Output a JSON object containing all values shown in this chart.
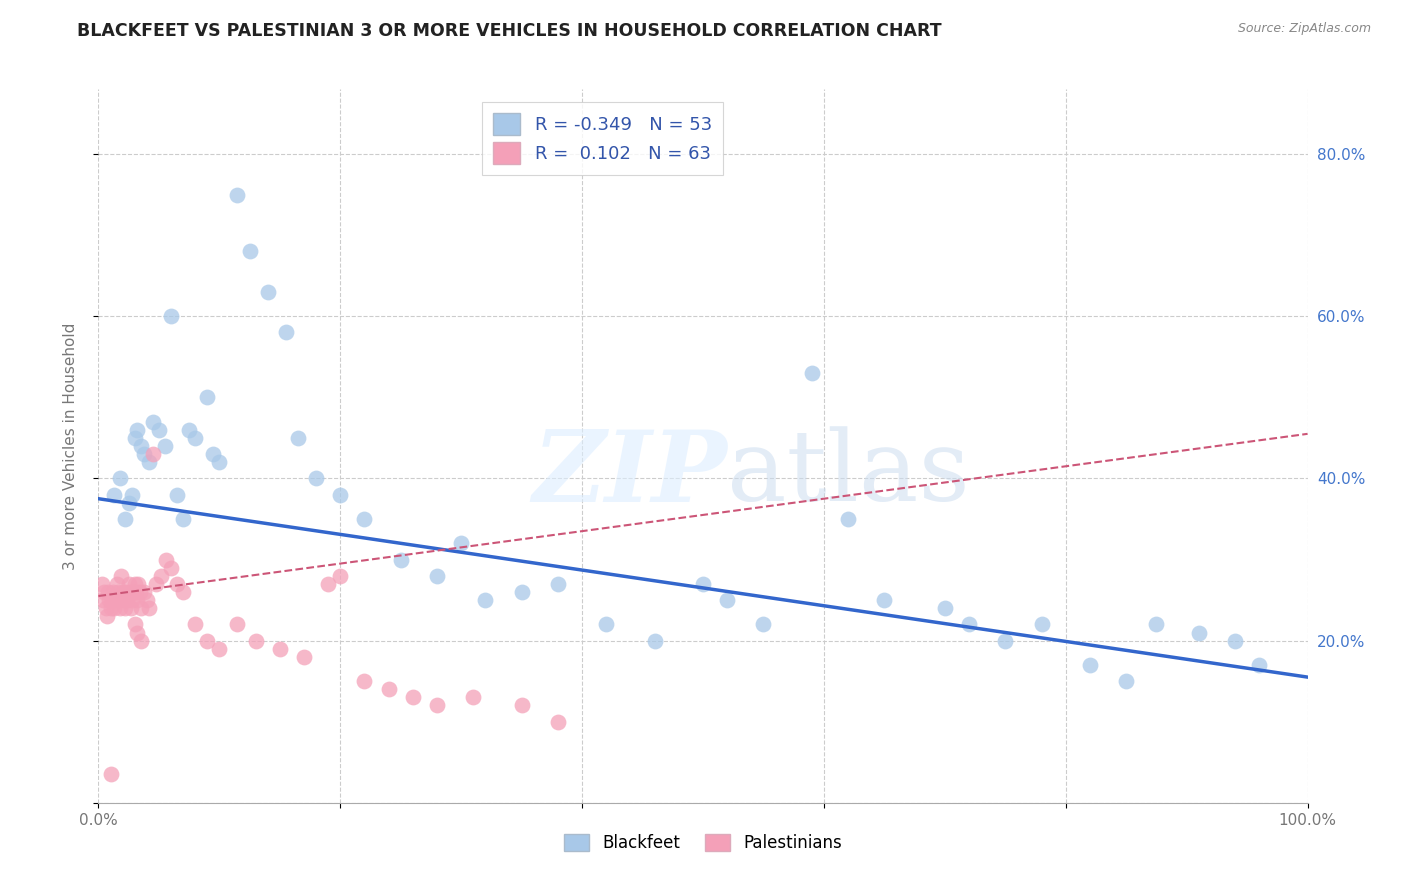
{
  "title": "BLACKFEET VS PALESTINIAN 3 OR MORE VEHICLES IN HOUSEHOLD CORRELATION CHART",
  "source": "Source: ZipAtlas.com",
  "ylabel": "3 or more Vehicles in Household",
  "xlim": [
    0.0,
    1.0
  ],
  "ylim": [
    0.0,
    0.88
  ],
  "xtick_positions": [
    0.0,
    0.2,
    0.4,
    0.6,
    0.8,
    1.0
  ],
  "xticklabels": [
    "0.0%",
    "",
    "",
    "",
    "",
    "100.0%"
  ],
  "ytick_positions": [
    0.0,
    0.2,
    0.4,
    0.6,
    0.8
  ],
  "yticklabels": [
    "",
    "20.0%",
    "40.0%",
    "60.0%",
    "80.0%"
  ],
  "blackfeet_R": -0.349,
  "blackfeet_N": 53,
  "palestinian_R": 0.102,
  "palestinian_N": 63,
  "blackfeet_color": "#a8c8e8",
  "palestinian_color": "#f4a0b8",
  "blackfeet_line_color": "#3366cc",
  "palestinian_line_color": "#cc5577",
  "bf_line_x0": 0.0,
  "bf_line_y0": 0.375,
  "bf_line_x1": 1.0,
  "bf_line_y1": 0.155,
  "pal_line_x0": 0.0,
  "pal_line_y0": 0.255,
  "pal_line_x1": 1.0,
  "pal_line_y1": 0.455,
  "blackfeet_x": [
    0.013,
    0.018,
    0.022,
    0.025,
    0.028,
    0.03,
    0.032,
    0.035,
    0.038,
    0.042,
    0.045,
    0.05,
    0.055,
    0.06,
    0.065,
    0.07,
    0.075,
    0.08,
    0.09,
    0.095,
    0.1,
    0.115,
    0.125,
    0.14,
    0.155,
    0.165,
    0.18,
    0.2,
    0.22,
    0.25,
    0.28,
    0.3,
    0.32,
    0.35,
    0.38,
    0.42,
    0.46,
    0.5,
    0.52,
    0.55,
    0.59,
    0.62,
    0.65,
    0.7,
    0.72,
    0.75,
    0.78,
    0.82,
    0.85,
    0.875,
    0.91,
    0.94,
    0.96
  ],
  "blackfeet_y": [
    0.38,
    0.4,
    0.35,
    0.37,
    0.38,
    0.45,
    0.46,
    0.44,
    0.43,
    0.42,
    0.47,
    0.46,
    0.44,
    0.6,
    0.38,
    0.35,
    0.46,
    0.45,
    0.5,
    0.43,
    0.42,
    0.75,
    0.68,
    0.63,
    0.58,
    0.45,
    0.4,
    0.38,
    0.35,
    0.3,
    0.28,
    0.32,
    0.25,
    0.26,
    0.27,
    0.22,
    0.2,
    0.27,
    0.25,
    0.22,
    0.53,
    0.35,
    0.25,
    0.24,
    0.22,
    0.2,
    0.22,
    0.17,
    0.15,
    0.22,
    0.21,
    0.2,
    0.17
  ],
  "palestinian_x": [
    0.003,
    0.004,
    0.005,
    0.006,
    0.007,
    0.008,
    0.009,
    0.01,
    0.011,
    0.012,
    0.013,
    0.014,
    0.015,
    0.016,
    0.017,
    0.018,
    0.019,
    0.02,
    0.021,
    0.022,
    0.023,
    0.024,
    0.025,
    0.026,
    0.027,
    0.028,
    0.029,
    0.03,
    0.031,
    0.032,
    0.033,
    0.034,
    0.035,
    0.038,
    0.04,
    0.042,
    0.045,
    0.048,
    0.052,
    0.056,
    0.06,
    0.065,
    0.07,
    0.08,
    0.09,
    0.1,
    0.115,
    0.13,
    0.15,
    0.17,
    0.19,
    0.2,
    0.22,
    0.24,
    0.26,
    0.28,
    0.31,
    0.35,
    0.38,
    0.03,
    0.032,
    0.035,
    0.01
  ],
  "palestinian_y": [
    0.27,
    0.25,
    0.26,
    0.24,
    0.23,
    0.26,
    0.25,
    0.24,
    0.25,
    0.26,
    0.24,
    0.25,
    0.27,
    0.26,
    0.25,
    0.24,
    0.28,
    0.26,
    0.25,
    0.24,
    0.26,
    0.25,
    0.27,
    0.26,
    0.24,
    0.25,
    0.26,
    0.27,
    0.26,
    0.25,
    0.27,
    0.26,
    0.24,
    0.26,
    0.25,
    0.24,
    0.43,
    0.27,
    0.28,
    0.3,
    0.29,
    0.27,
    0.26,
    0.22,
    0.2,
    0.19,
    0.22,
    0.2,
    0.19,
    0.18,
    0.27,
    0.28,
    0.15,
    0.14,
    0.13,
    0.12,
    0.13,
    0.12,
    0.1,
    0.22,
    0.21,
    0.2,
    0.035
  ]
}
